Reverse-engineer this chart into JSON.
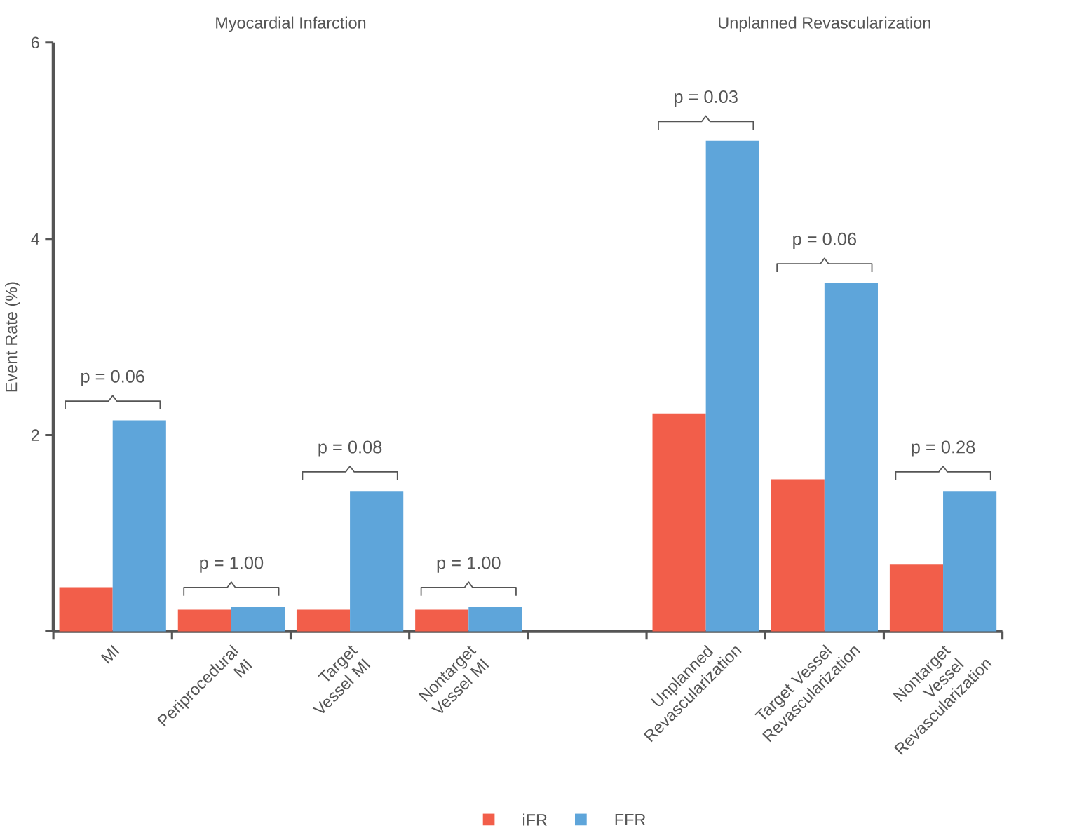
{
  "chart_data": {
    "type": "bar",
    "ylabel": "Event Rate (%)",
    "categories": [
      "MI",
      "Periprocedural MI",
      "Target Vessel MI",
      "Nontarget Vessel MI",
      null,
      "Unplanned Revascularization",
      "Target Vessel Revascularization",
      "Nontarget Vessel Revascularization"
    ],
    "series": [
      {
        "name": "iFR",
        "color": "#f25e4a",
        "values": [
          0.45,
          0.22,
          0.22,
          0.22,
          null,
          2.22,
          1.55,
          0.68
        ]
      },
      {
        "name": "FFR",
        "color": "#5ea5da",
        "values": [
          2.15,
          0.25,
          1.43,
          0.25,
          null,
          5.0,
          3.55,
          1.43
        ]
      }
    ],
    "ylim": [
      0,
      6
    ],
    "yticks": [
      {
        "value": 0,
        "label": null
      },
      2,
      4,
      6
    ],
    "legend": "bottom",
    "grid": false,
    "annotations": [
      "Myocardial Infarction",
      "Unplanned Revascularization",
      "p = 0.06",
      "p = 1.00",
      "p = 0.08",
      "p = 1.00",
      "p = 0.03",
      "p = 0.06",
      "p = 0.28"
    ]
  }
}
